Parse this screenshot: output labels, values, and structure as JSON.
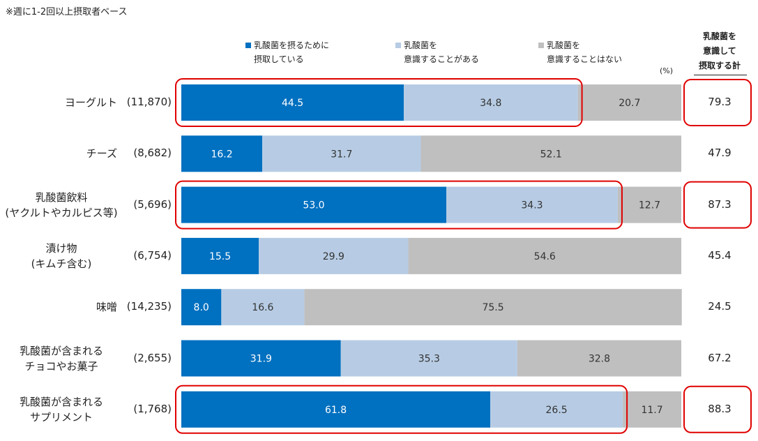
{
  "note": "※週に1-2回以上摂取者ベース",
  "unit": "(%)",
  "total_header": [
    "乳酸菌を",
    "意識して",
    "摂取する計"
  ],
  "colors": {
    "seg1": "#0070C0",
    "seg2": "#B7CCE4",
    "seg3": "#BFBFBF",
    "highlight": "#E00000"
  },
  "legend": [
    {
      "line1": "乳酸菌を摂るために",
      "line2": "摂取している",
      "color": "#0070C0"
    },
    {
      "line1": "乳酸菌を",
      "line2": "意識することがある",
      "color": "#B7CCE4"
    },
    {
      "line1": "乳酸菌を",
      "line2": "意識することはない",
      "color": "#BFBFBF"
    }
  ],
  "chart_data": {
    "type": "bar",
    "orientation": "horizontal",
    "stacked": true,
    "xlim": [
      0,
      100
    ],
    "categories": [
      {
        "label_lines": [
          "ヨーグルト"
        ],
        "count": "(11,870)",
        "total": "79.3",
        "highlight": true
      },
      {
        "label_lines": [
          "チーズ"
        ],
        "count": "(8,682)",
        "total": "47.9",
        "highlight": false
      },
      {
        "label_lines": [
          "乳酸菌飲料",
          "(ヤクルトやカルピス等)"
        ],
        "count": "(5,696)",
        "total": "87.3",
        "highlight": true
      },
      {
        "label_lines": [
          "漬け物",
          "(キムチ含む)"
        ],
        "count": "(6,754)",
        "total": "45.4",
        "highlight": false
      },
      {
        "label_lines": [
          "味噌"
        ],
        "count": "(14,235)",
        "total": "24.5",
        "highlight": false
      },
      {
        "label_lines": [
          "乳酸菌が含まれる",
          "チョコやお菓子"
        ],
        "count": "(2,655)",
        "total": "67.2",
        "highlight": false
      },
      {
        "label_lines": [
          "乳酸菌が含まれる",
          "サプリメント"
        ],
        "count": "(1,768)",
        "total": "88.3",
        "highlight": true
      }
    ],
    "series": [
      {
        "name": "乳酸菌を摂るために摂取している",
        "values": [
          44.5,
          16.2,
          53.0,
          15.5,
          8.0,
          31.9,
          61.8
        ]
      },
      {
        "name": "乳酸菌を意識することがある",
        "values": [
          34.8,
          31.7,
          34.3,
          29.9,
          16.6,
          35.3,
          26.5
        ]
      },
      {
        "name": "乳酸菌を意識することはない",
        "values": [
          20.7,
          52.1,
          12.7,
          54.6,
          75.5,
          32.8,
          11.7
        ]
      }
    ]
  }
}
